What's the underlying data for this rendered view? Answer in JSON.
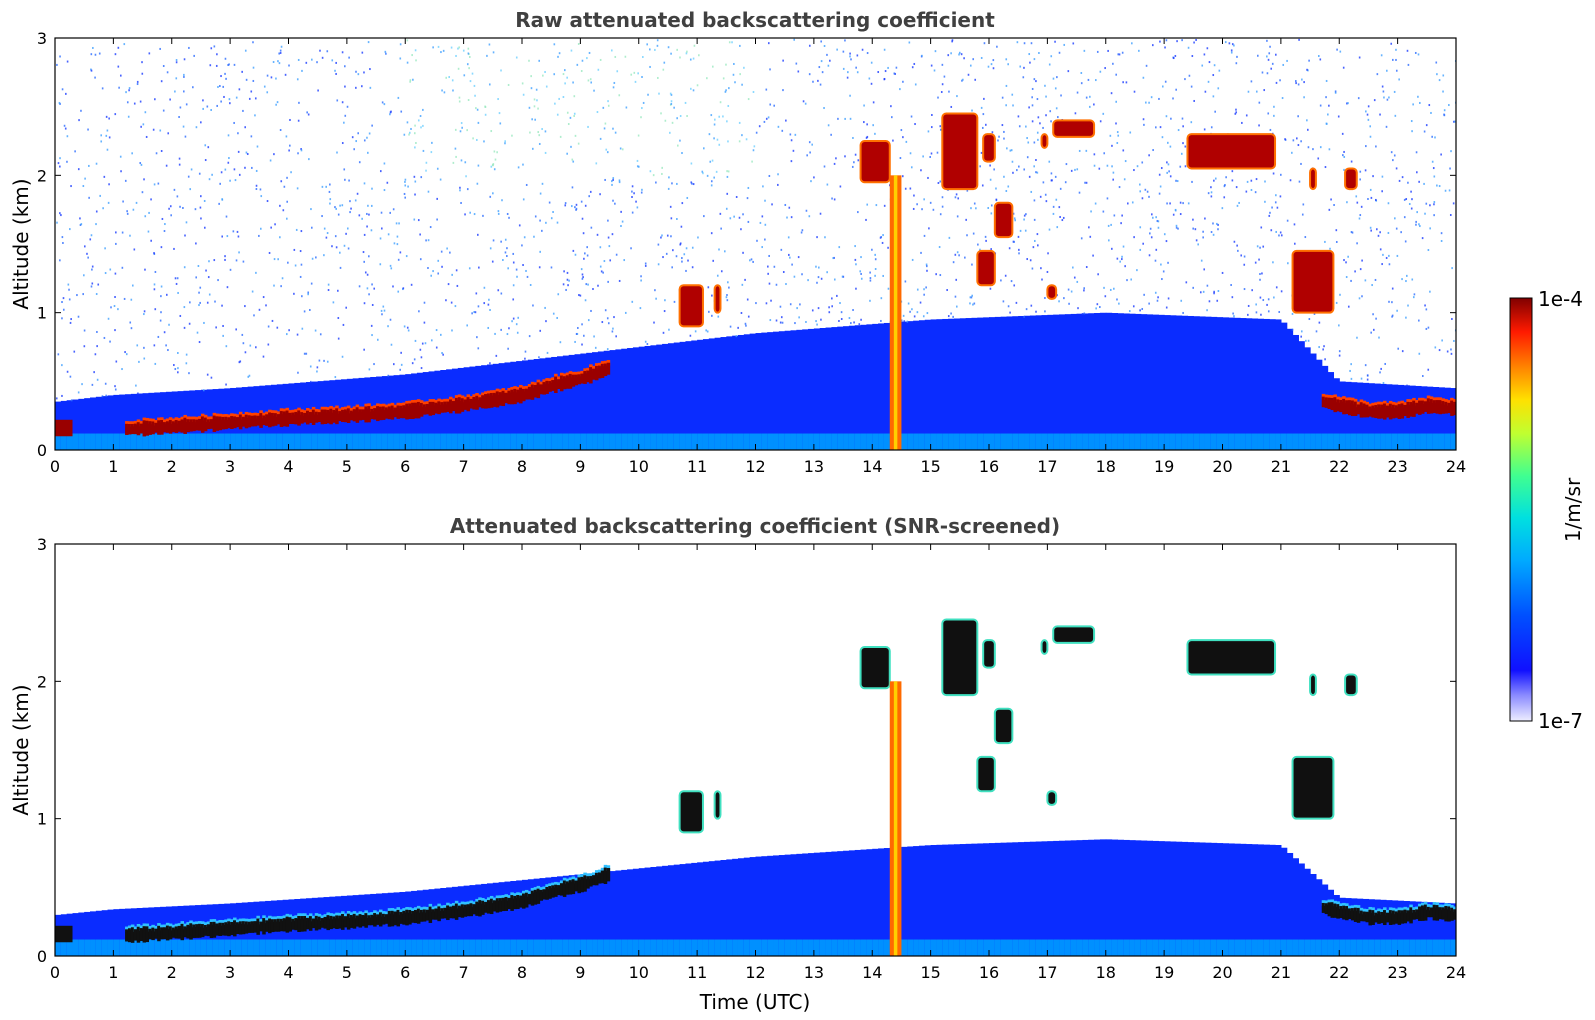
{
  "chart_data": [
    {
      "type": "heatmap",
      "title": "Raw attenuated backscattering coefficient",
      "xlabel": "",
      "ylabel": "Altitude (km)",
      "xlim": [
        0,
        24
      ],
      "ylim": [
        0,
        3
      ],
      "x_ticks": [
        0,
        1,
        2,
        3,
        4,
        5,
        6,
        7,
        8,
        9,
        10,
        11,
        12,
        13,
        14,
        15,
        16,
        17,
        18,
        19,
        20,
        21,
        22,
        23,
        24
      ],
      "y_ticks": [
        0,
        1,
        2,
        3
      ],
      "colormap": "jet",
      "color_scale": "log",
      "background_noise": true,
      "features": {
        "boundary_layer": [
          [
            0,
            0.12
          ],
          [
            0.3,
            0.15
          ],
          [
            1.2,
            0.15
          ],
          [
            2,
            0.17
          ],
          [
            3,
            0.2
          ],
          [
            4,
            0.23
          ],
          [
            5,
            0.25
          ],
          [
            6,
            0.28
          ],
          [
            7,
            0.33
          ],
          [
            8,
            0.4
          ],
          [
            8.5,
            0.47
          ],
          [
            9,
            0.52
          ],
          [
            9.5,
            0.6
          ]
        ],
        "late_boundary_layer": [
          [
            21.7,
            0.35
          ],
          [
            22,
            0.32
          ],
          [
            22.5,
            0.28
          ],
          [
            23,
            0.28
          ],
          [
            23.5,
            0.32
          ],
          [
            24,
            0.3
          ]
        ],
        "aerosol_top_km": [
          [
            0,
            0.35
          ],
          [
            1,
            0.4
          ],
          [
            3,
            0.45
          ],
          [
            6,
            0.55
          ],
          [
            9,
            0.7
          ],
          [
            12,
            0.85
          ],
          [
            15,
            0.95
          ],
          [
            18,
            1.0
          ],
          [
            21,
            0.95
          ],
          [
            22,
            0.5
          ],
          [
            24,
            0.45
          ]
        ],
        "cloud_segments": [
          {
            "t0": 10.7,
            "t1": 11.1,
            "z0": 0.9,
            "z1": 1.2
          },
          {
            "t0": 11.3,
            "t1": 11.4,
            "z0": 1.0,
            "z1": 1.2
          },
          {
            "t0": 13.8,
            "t1": 14.3,
            "z0": 1.95,
            "z1": 2.25
          },
          {
            "t0": 15.2,
            "t1": 15.8,
            "z0": 1.9,
            "z1": 2.45
          },
          {
            "t0": 15.9,
            "t1": 16.1,
            "z0": 2.1,
            "z1": 2.3
          },
          {
            "t0": 16.1,
            "t1": 16.4,
            "z0": 1.55,
            "z1": 1.8
          },
          {
            "t0": 15.8,
            "t1": 16.1,
            "z0": 1.2,
            "z1": 1.45
          },
          {
            "t0": 16.9,
            "t1": 17.0,
            "z0": 2.2,
            "z1": 2.3
          },
          {
            "t0": 17.1,
            "t1": 17.8,
            "z0": 2.28,
            "z1": 2.4
          },
          {
            "t0": 17.0,
            "t1": 17.15,
            "z0": 1.1,
            "z1": 1.2
          },
          {
            "t0": 19.4,
            "t1": 20.9,
            "z0": 2.05,
            "z1": 2.3
          },
          {
            "t0": 21.2,
            "t1": 21.9,
            "z0": 1.0,
            "z1": 1.45
          },
          {
            "t0": 21.5,
            "t1": 21.6,
            "z0": 1.9,
            "z1": 2.05
          },
          {
            "t0": 22.1,
            "t1": 22.3,
            "z0": 1.9,
            "z1": 2.05
          }
        ],
        "precipitation_shaft": {
          "t0": 14.3,
          "t1": 14.5,
          "z0": 0.0,
          "z1": 2.0
        }
      }
    },
    {
      "type": "heatmap",
      "title": "Attenuated backscattering coefficient (SNR-screened)",
      "xlabel": "Time (UTC)",
      "ylabel": "Altitude (km)",
      "xlim": [
        0,
        24
      ],
      "ylim": [
        0,
        3
      ],
      "x_ticks": [
        0,
        1,
        2,
        3,
        4,
        5,
        6,
        7,
        8,
        9,
        10,
        11,
        12,
        13,
        14,
        15,
        16,
        17,
        18,
        19,
        20,
        21,
        22,
        23,
        24
      ],
      "y_ticks": [
        0,
        1,
        2,
        3
      ],
      "colormap": "jet",
      "color_scale": "log",
      "background_noise": false,
      "saturated_color": "#000000",
      "screened_color": "#ffffff"
    }
  ],
  "colorbar": {
    "min_label": "1e-7",
    "max_label": "1e-4",
    "unit_label": "1/m/sr",
    "range": [
      1e-07,
      0.0001
    ],
    "scale": "log"
  }
}
